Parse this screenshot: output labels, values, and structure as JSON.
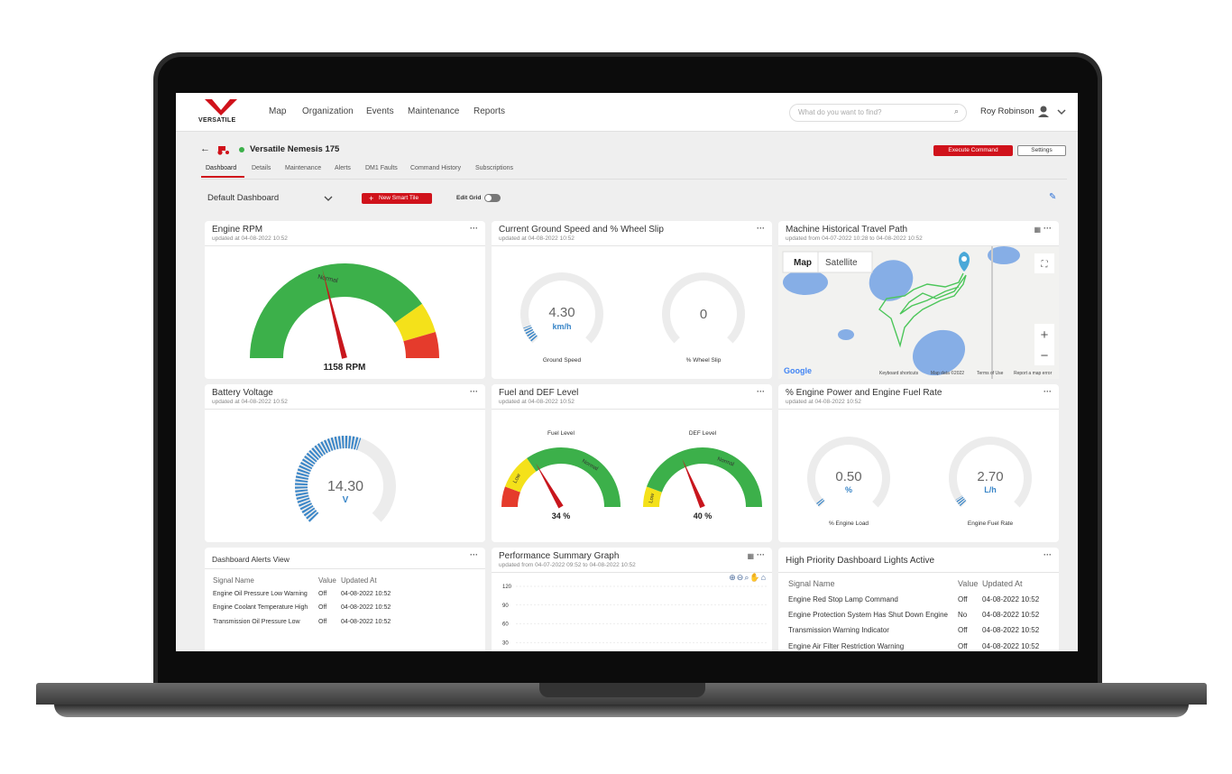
{
  "nav": {
    "brand": "VERSATILE",
    "links": [
      "Map",
      "Organization",
      "Events",
      "Maintenance",
      "Reports"
    ],
    "search_placeholder": "What do you want to find?",
    "user": "Roy Robinson"
  },
  "machine": {
    "name": "Versatile Nemesis 175",
    "tabs": [
      "Dashboard",
      "Details",
      "Maintenance",
      "Alerts",
      "DM1 Faults",
      "Command History",
      "Subscriptions"
    ],
    "buttons": [
      "Execute Command",
      "Settings"
    ]
  },
  "toolbar": {
    "dashboard": "Default Dashboard",
    "new_tile": "New Smart Tile",
    "edit_grid": "Edit Grid"
  },
  "tiles": [
    {
      "title": "Engine RPM",
      "updated": "updated at 04-08-2022 10:52",
      "zone": "Normal",
      "reading": "1158 RPM"
    },
    {
      "title": "Current Ground Speed and % Wheel Slip",
      "updated": "updated at 04-08-2022 10:52",
      "gauges": [
        {
          "value": "4.30",
          "unit": "km/h",
          "label": "Ground Speed"
        },
        {
          "value": "0",
          "label": "% Wheel Slip"
        }
      ]
    },
    {
      "title": "Machine Historical Travel Path",
      "updated": "updated from 04-07-2022 10:28 to 04-08-2022 10:52",
      "map_tabs": [
        "Map",
        "Satellite"
      ],
      "logo": "Google",
      "attribution": [
        "Keyboard shortcuts",
        "Map data ©2022",
        "Terms of Use",
        "Report a map error"
      ]
    },
    {
      "title": "Battery Voltage",
      "updated": "updated at 04-08-2022 10:52",
      "value": "14.30",
      "unit": "V"
    },
    {
      "title": "Fuel and DEF Level",
      "updated": "updated at 04-08-2022 10:52",
      "gauges": [
        {
          "label": "Fuel Level",
          "zones": [
            "Low",
            "Normal"
          ],
          "reading": "34 %"
        },
        {
          "label": "DEF Level",
          "zones": [
            "Low",
            "Normal"
          ],
          "reading": "40 %"
        }
      ]
    },
    {
      "title": "% Engine Power and Engine Fuel Rate",
      "updated": "updated at 04-08-2022 10:52",
      "gauges": [
        {
          "value": "0.50",
          "unit": "%",
          "label": "% Engine Load"
        },
        {
          "value": "2.70",
          "unit": "L/h",
          "label": "Engine Fuel Rate"
        }
      ]
    },
    {
      "title": "Dashboard Alerts View",
      "columns": [
        "Signal Name",
        "Value",
        "Updated At"
      ],
      "rows": [
        [
          "Engine Oil Pressure Low Warning",
          "Off",
          "04-08-2022 10:52"
        ],
        [
          "Engine Coolant Temperature High",
          "Off",
          "04-08-2022 10:52"
        ],
        [
          "Transmission Oil Pressure Low",
          "Off",
          "04-08-2022 10:52"
        ]
      ]
    },
    {
      "title": "Performance Summary Graph",
      "updated": "updated from 04-07-2022 09:52 to 04-08-2022 10:52",
      "ylim": [
        0,
        120
      ],
      "yticks": [
        120,
        90,
        60,
        30
      ]
    },
    {
      "title": "High Priority Dashboard Lights Active",
      "columns": [
        "Signal Name",
        "Value",
        "Updated At"
      ],
      "rows": [
        [
          "Engine Red Stop Lamp Command",
          "Off",
          "04-08-2022 10:52"
        ],
        [
          "Engine Protection System Has Shut Down Engine",
          "No",
          "04-08-2022 10:52"
        ],
        [
          "Transmission Warning Indicator",
          "Off",
          "04-08-2022 10:52"
        ],
        [
          "Engine Air Filter Restriction Warning",
          "Off",
          "04-08-2022 10:52"
        ]
      ]
    }
  ]
}
